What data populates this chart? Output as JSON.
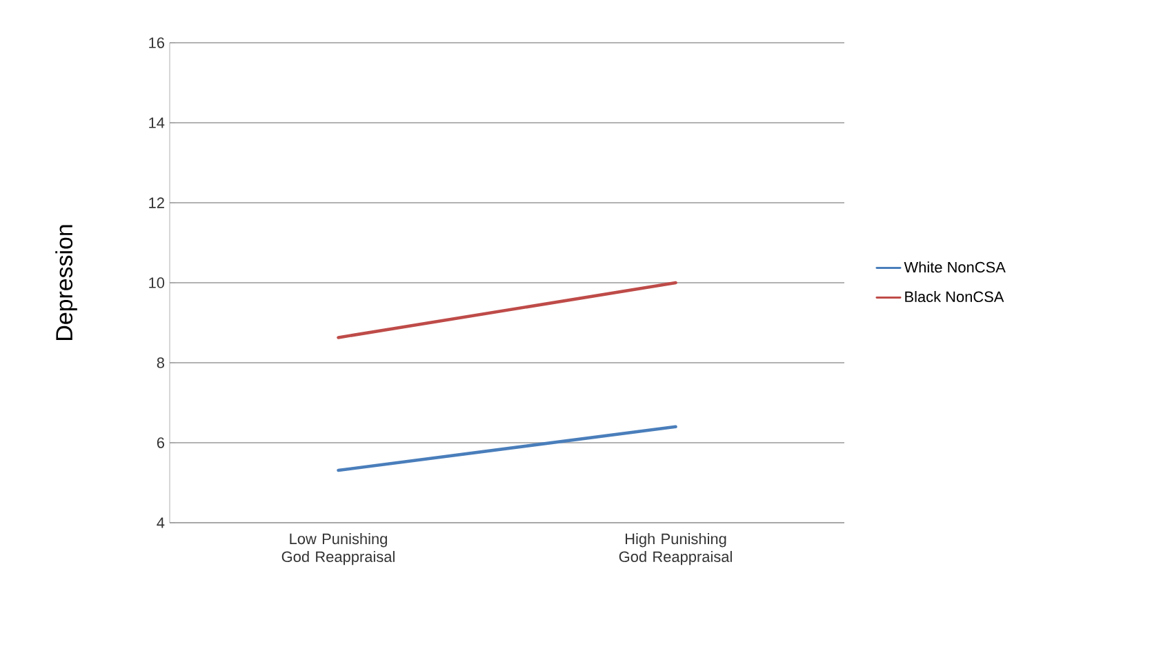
{
  "chart_data": {
    "type": "line",
    "ylabel": "Depression",
    "categories": [
      "Low Punishing God Reappraisal",
      "High Punishing God Reappraisal"
    ],
    "series": [
      {
        "name": "White NonCSA",
        "color": "#4a7ebb",
        "values": [
          5.31,
          6.4
        ]
      },
      {
        "name": "Black NonCSA",
        "color": "#be4b48",
        "values": [
          8.63,
          10.0
        ]
      }
    ],
    "ylim": [
      4,
      16
    ],
    "yticks": [
      4,
      6,
      8,
      10,
      12,
      14,
      16
    ],
    "grid": "y",
    "legend": "right",
    "marker": "none",
    "line_style": "solid"
  }
}
